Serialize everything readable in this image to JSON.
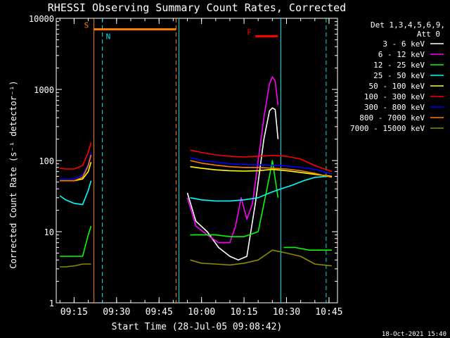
{
  "chart_data": {
    "type": "line",
    "title": "RHESSI Observing Summary Count Rates, Corrected",
    "xlabel": "Start Time (28-Jul-05 09:08:42)",
    "ylabel": "Corrected Count Rate (s⁻¹ detector⁻¹)",
    "ylog": true,
    "xlim": [
      "09:08:42",
      "10:48:00"
    ],
    "ylim": [
      1,
      10000
    ],
    "x_ticks": [
      "09:15",
      "09:30",
      "09:45",
      "10:00",
      "10:15",
      "10:30",
      "10:45"
    ],
    "y_ticks": [
      "1",
      "10",
      "100",
      "1000",
      "10000"
    ],
    "legend_header": [
      "Det 1,3,4,5,6,9,",
      "Att 0"
    ],
    "legend_position": "top-right",
    "timestamp": "18-Oct-2021 15:40",
    "markers": [
      {
        "label": "S",
        "color": "#ff7f00",
        "start": "09:22:00",
        "end": "09:51:00",
        "y": 7000
      },
      {
        "label": "N",
        "color": "#00e5ee",
        "start": "09:25:00",
        "end": "09:25:00",
        "y": 5600
      },
      {
        "label": "F",
        "color": "#ff0000",
        "start": "10:19:00",
        "end": "10:27:00",
        "y": 5600
      }
    ],
    "vertical_lines": [
      {
        "time": "09:22:00",
        "color": "#ff7f00",
        "style": "solid"
      },
      {
        "time": "09:25:00",
        "color": "#00e5ee",
        "style": "dashed"
      },
      {
        "time": "09:51:00",
        "color": "#ff7f00",
        "style": "dashed"
      },
      {
        "time": "09:52:00",
        "color": "#00e5ee",
        "style": "solid"
      },
      {
        "time": "10:28:00",
        "color": "#00e5ee",
        "style": "solid"
      },
      {
        "time": "10:44:00",
        "color": "#00e5ee",
        "style": "dashed"
      }
    ],
    "series": [
      {
        "name": "3 - 6 keV",
        "color": "#ffffff",
        "x": [
          "09:52",
          "09:55",
          "09:58",
          "10:02",
          "10:06",
          "10:10",
          "10:13",
          "10:16",
          "10:19",
          "10:22",
          "10:24",
          "10:25",
          "10:26",
          "10:27",
          "10:28",
          "10:30",
          "10:34",
          "10:38",
          "10:42",
          "10:46"
        ],
        "y": [
          null,
          35,
          14,
          10,
          6,
          4.5,
          4,
          4.5,
          25,
          200,
          500,
          550,
          520,
          200,
          null,
          null,
          null,
          null,
          null,
          null
        ]
      },
      {
        "name": "6 - 12 keV",
        "color": "#ff00ff",
        "x": [
          "09:52",
          "09:55",
          "09:58",
          "10:02",
          "10:06",
          "10:10",
          "10:12",
          "10:14",
          "10:16",
          "10:18",
          "10:20",
          "10:22",
          "10:24",
          "10:25",
          "10:26",
          "10:27",
          "10:28",
          "10:30",
          "10:34"
        ],
        "y": [
          null,
          30,
          12,
          9,
          7,
          7,
          12,
          30,
          15,
          25,
          100,
          400,
          1200,
          1500,
          1300,
          600,
          null,
          null,
          null
        ]
      },
      {
        "name": "12 - 25 keV",
        "color": "#00ff00",
        "x": [
          "09:10",
          "09:12",
          "09:15",
          "09:18",
          "09:20",
          "09:21",
          "09:52",
          "09:56",
          "10:00",
          "10:05",
          "10:10",
          "10:15",
          "10:20",
          "10:24",
          "10:25",
          "10:27",
          "10:28",
          "10:29",
          "10:33",
          "10:38",
          "10:42",
          "10:46"
        ],
        "y": [
          4.5,
          4.5,
          4.5,
          4.5,
          9,
          12,
          null,
          9,
          9,
          9,
          8.5,
          8.5,
          10,
          60,
          100,
          30,
          null,
          6,
          6,
          5.5,
          5.5,
          5.5
        ]
      },
      {
        "name": "25 - 50 keV",
        "color": "#00ffff",
        "x": [
          "09:10",
          "09:12",
          "09:15",
          "09:18",
          "09:20",
          "09:21",
          "09:52",
          "09:56",
          "10:00",
          "10:05",
          "10:10",
          "10:15",
          "10:20",
          "10:24",
          "10:28",
          "10:32",
          "10:36",
          "10:40",
          "10:44",
          "10:46"
        ],
        "y": [
          32,
          28,
          25,
          24,
          38,
          52,
          null,
          30,
          28,
          27,
          27,
          28,
          30,
          35,
          40,
          45,
          52,
          58,
          60,
          60
        ]
      },
      {
        "name": "50 - 100 keV",
        "color": "#ffff00",
        "x": [
          "09:10",
          "09:12",
          "09:15",
          "09:18",
          "09:20",
          "09:21",
          "09:52",
          "09:56",
          "10:00",
          "10:05",
          "10:10",
          "10:15",
          "10:20",
          "10:25",
          "10:30",
          "10:35",
          "10:40",
          "10:46"
        ],
        "y": [
          52,
          52,
          52,
          55,
          70,
          95,
          null,
          82,
          78,
          74,
          72,
          71,
          72,
          75,
          72,
          68,
          64,
          60
        ]
      },
      {
        "name": "100 - 300 keV",
        "color": "#ff0000",
        "x": [
          "09:10",
          "09:12",
          "09:15",
          "09:18",
          "09:20",
          "09:21",
          "09:52",
          "09:56",
          "10:00",
          "10:05",
          "10:10",
          "10:15",
          "10:20",
          "10:25",
          "10:30",
          "10:35",
          "10:40",
          "10:46"
        ],
        "y": [
          78,
          76,
          76,
          85,
          130,
          180,
          null,
          140,
          130,
          120,
          115,
          112,
          115,
          118,
          115,
          105,
          85,
          70
        ]
      },
      {
        "name": "300 - 800 keV",
        "color": "#0000ff",
        "x": [
          "09:10",
          "09:12",
          "09:15",
          "09:18",
          "09:20",
          "09:21",
          "09:52",
          "09:56",
          "10:00",
          "10:05",
          "10:10",
          "10:15",
          "10:20",
          "10:25",
          "10:30",
          "10:35",
          "10:40",
          "10:46"
        ],
        "y": [
          55,
          55,
          55,
          62,
          90,
          130,
          null,
          110,
          100,
          95,
          90,
          88,
          87,
          86,
          84,
          80,
          75,
          65
        ]
      },
      {
        "name": "800 - 7000 keV",
        "color": "#ff7f00",
        "x": [
          "09:10",
          "09:12",
          "09:15",
          "09:18",
          "09:20",
          "09:21",
          "09:52",
          "09:56",
          "10:00",
          "10:05",
          "10:10",
          "10:15",
          "10:20",
          "10:25",
          "10:30",
          "10:35",
          "10:40",
          "10:46"
        ],
        "y": [
          52,
          52,
          52,
          58,
          85,
          120,
          null,
          100,
          92,
          86,
          82,
          80,
          80,
          78,
          76,
          72,
          66,
          58
        ]
      },
      {
        "name": "7000 - 15000 keV",
        "color": "#8b8b00",
        "x": [
          "09:10",
          "09:12",
          "09:15",
          "09:18",
          "09:20",
          "09:21",
          "09:52",
          "09:56",
          "10:00",
          "10:05",
          "10:10",
          "10:15",
          "10:20",
          "10:25",
          "10:30",
          "10:35",
          "10:40",
          "10:46"
        ],
        "y": [
          3.2,
          3.2,
          3.3,
          3.5,
          3.5,
          3.5,
          null,
          4,
          3.6,
          3.5,
          3.4,
          3.6,
          4,
          5.5,
          5,
          4.5,
          3.5,
          3.3
        ]
      }
    ]
  }
}
